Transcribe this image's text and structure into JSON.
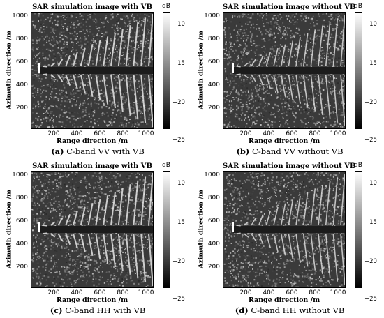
{
  "colorbar": {
    "unit": "dB",
    "ticks": [
      "−10",
      "−15",
      "−20",
      "−25"
    ]
  },
  "axes": {
    "xlabel": "Range direction /m",
    "ylabel": "Azimuth direction /m",
    "xticks": [
      "200",
      "400",
      "600",
      "800",
      "1000"
    ],
    "yticks": [
      "1000",
      "800",
      "600",
      "400",
      "200"
    ]
  },
  "panels": [
    {
      "title": "SAR simulation image with VB",
      "caption_tag": "(a)",
      "caption_text": "C-band VV with VB"
    },
    {
      "title": "SAR simulation image without VB",
      "caption_tag": "(b)",
      "caption_text": "C-band VV without VB"
    },
    {
      "title": "SAR simulation image with VB",
      "caption_tag": "(c)",
      "caption_text": "C-band HH with VB"
    },
    {
      "title": "SAR simulation image without VB",
      "caption_tag": "(d)",
      "caption_text": "C-band HH without VB"
    }
  ]
}
